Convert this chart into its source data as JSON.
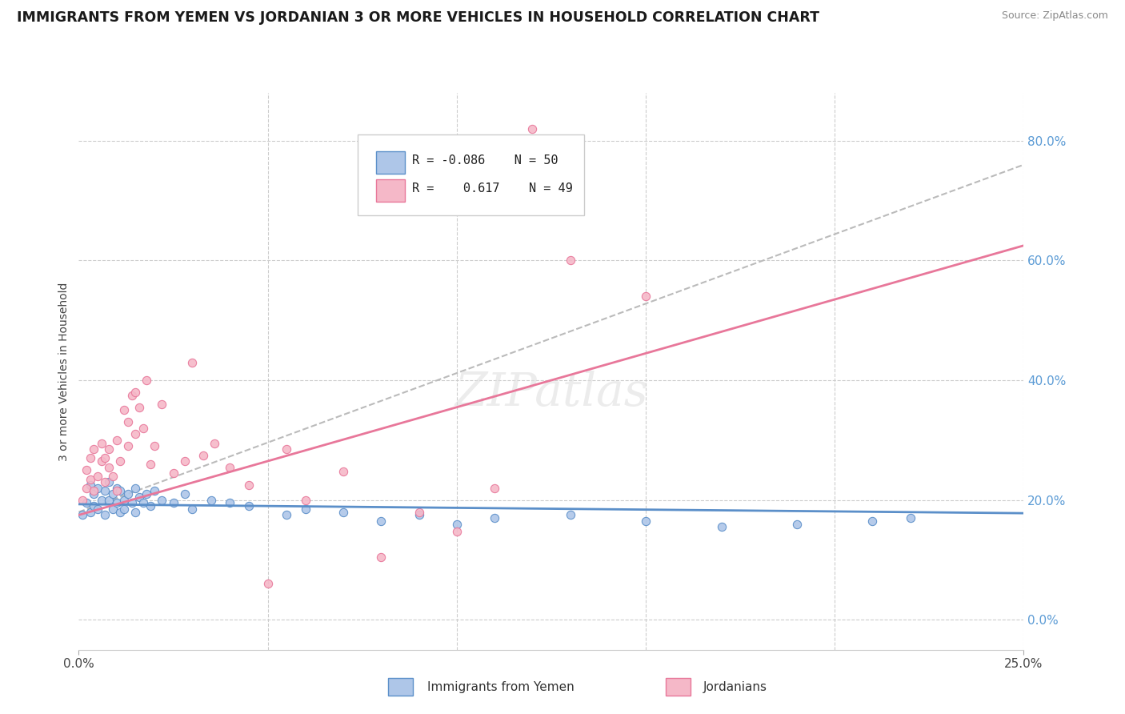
{
  "title": "IMMIGRANTS FROM YEMEN VS JORDANIAN 3 OR MORE VEHICLES IN HOUSEHOLD CORRELATION CHART",
  "source": "Source: ZipAtlas.com",
  "ylabel": "3 or more Vehicles in Household",
  "ytick_labels": [
    "0.0%",
    "20.0%",
    "40.0%",
    "60.0%",
    "80.0%"
  ],
  "ytick_vals": [
    0.0,
    0.2,
    0.4,
    0.6,
    0.8
  ],
  "xlim": [
    0.0,
    0.25
  ],
  "ylim": [
    -0.05,
    0.88
  ],
  "legend_R1": "-0.086",
  "legend_N1": "50",
  "legend_R2": "0.617",
  "legend_N2": "49",
  "watermark": "ZIPatlas",
  "color_blue": "#aec6e8",
  "color_pink": "#f5b8c8",
  "line_blue": "#5b8fc9",
  "line_pink": "#e8779a",
  "line_gray": "#bbbbbb",
  "yemen_x": [
    0.001,
    0.002,
    0.003,
    0.003,
    0.004,
    0.004,
    0.005,
    0.005,
    0.006,
    0.007,
    0.007,
    0.008,
    0.008,
    0.009,
    0.009,
    0.01,
    0.01,
    0.011,
    0.011,
    0.012,
    0.012,
    0.013,
    0.014,
    0.015,
    0.015,
    0.016,
    0.017,
    0.018,
    0.019,
    0.02,
    0.022,
    0.025,
    0.028,
    0.03,
    0.035,
    0.04,
    0.045,
    0.055,
    0.06,
    0.07,
    0.08,
    0.09,
    0.1,
    0.11,
    0.13,
    0.15,
    0.17,
    0.19,
    0.21,
    0.22
  ],
  "yemen_y": [
    0.175,
    0.195,
    0.18,
    0.225,
    0.21,
    0.19,
    0.185,
    0.22,
    0.2,
    0.175,
    0.215,
    0.2,
    0.23,
    0.185,
    0.21,
    0.195,
    0.22,
    0.18,
    0.215,
    0.2,
    0.185,
    0.21,
    0.195,
    0.22,
    0.18,
    0.205,
    0.195,
    0.21,
    0.19,
    0.215,
    0.2,
    0.195,
    0.21,
    0.185,
    0.2,
    0.195,
    0.19,
    0.175,
    0.185,
    0.18,
    0.165,
    0.175,
    0.16,
    0.17,
    0.175,
    0.165,
    0.155,
    0.16,
    0.165,
    0.17
  ],
  "jordan_x": [
    0.001,
    0.002,
    0.002,
    0.003,
    0.003,
    0.004,
    0.004,
    0.005,
    0.006,
    0.006,
    0.007,
    0.007,
    0.008,
    0.008,
    0.009,
    0.01,
    0.01,
    0.011,
    0.012,
    0.013,
    0.013,
    0.014,
    0.015,
    0.015,
    0.016,
    0.017,
    0.018,
    0.019,
    0.02,
    0.022,
    0.025,
    0.028,
    0.03,
    0.033,
    0.036,
    0.04,
    0.045,
    0.05,
    0.055,
    0.06,
    0.07,
    0.08,
    0.09,
    0.1,
    0.11,
    0.12,
    0.13,
    0.15,
    0.12
  ],
  "jordan_y": [
    0.2,
    0.22,
    0.25,
    0.235,
    0.27,
    0.215,
    0.285,
    0.24,
    0.265,
    0.295,
    0.23,
    0.27,
    0.255,
    0.285,
    0.24,
    0.215,
    0.3,
    0.265,
    0.35,
    0.29,
    0.33,
    0.375,
    0.31,
    0.38,
    0.355,
    0.32,
    0.4,
    0.26,
    0.29,
    0.36,
    0.245,
    0.265,
    0.43,
    0.275,
    0.295,
    0.255,
    0.225,
    0.06,
    0.285,
    0.2,
    0.248,
    0.105,
    0.18,
    0.148,
    0.22,
    0.75,
    0.6,
    0.54,
    0.82
  ],
  "blue_line_y": [
    0.193,
    0.178
  ],
  "pink_line_y": [
    0.175,
    0.625
  ],
  "gray_line_y": [
    0.18,
    0.76
  ]
}
